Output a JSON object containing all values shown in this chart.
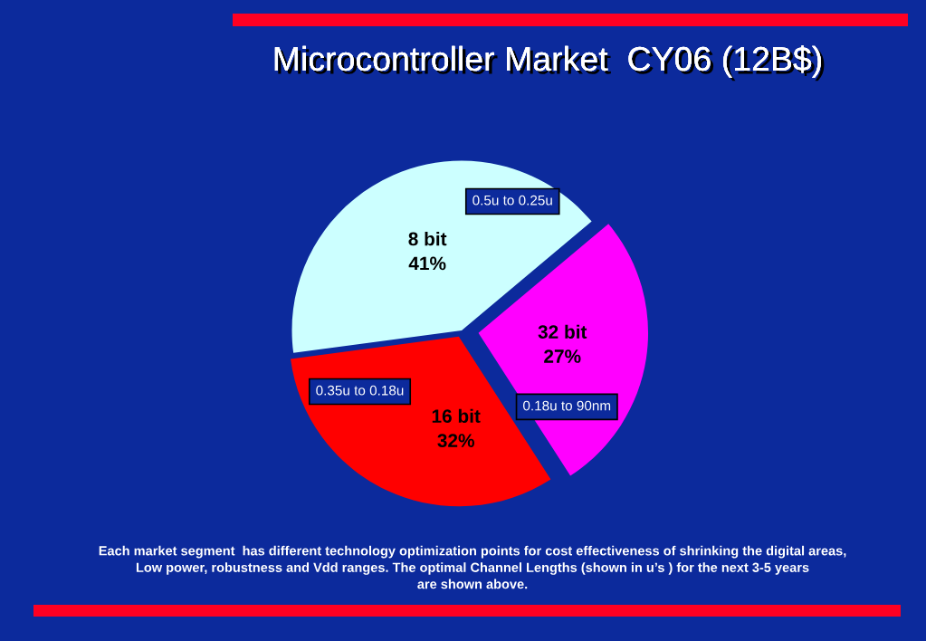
{
  "chart_data": {
    "type": "pie",
    "title": "Microcontroller Market  CY06 (12B$)",
    "categories": [
      "8 bit",
      "16 bit",
      "32 bit"
    ],
    "values": [
      41,
      32,
      27
    ],
    "value_labels": [
      "41%",
      "32%",
      "27%"
    ],
    "colors": [
      "#ccffff",
      "#ff0000",
      "#ff00ff"
    ],
    "annotations": [
      "0.5u to 0.25u",
      "0.35u to 0.18u",
      "0.18u to 90nm",
      "Each market segment  has different technology optimization points for cost effectiveness of shrinking the digital areas,\nLow power, robustness and Vdd ranges. The optimal Channel Lengths (shown in u’s ) for the next 3-5 years\nare shown above."
    ]
  }
}
